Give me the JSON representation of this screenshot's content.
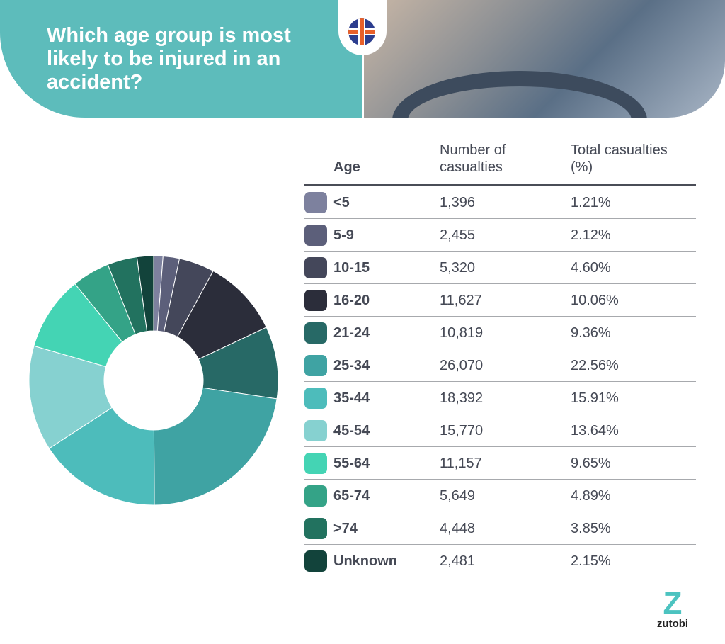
{
  "header": {
    "title": "Which age group is most likely to be injured in an accident?",
    "flag_icon": "uk-flag-icon"
  },
  "table": {
    "headers": [
      "Age",
      "Number of casualties",
      "Total casualties (%)"
    ]
  },
  "chart_data": {
    "type": "pie",
    "variant": "donut",
    "start": "top, clockwise",
    "categories": [
      "<5",
      "5-9",
      "10-15",
      "16-20",
      "21-24",
      "25-34",
      "35-44",
      "45-54",
      "55-64",
      "65-74",
      ">74",
      "Unknown"
    ],
    "values": [
      1396,
      2455,
      5320,
      11627,
      10819,
      26070,
      18392,
      15770,
      11157,
      5649,
      4448,
      2481
    ],
    "percent_labels": [
      "1.21%",
      "2.12%",
      "4.60%",
      "10.06%",
      "9.36%",
      "22.56%",
      "15.91%",
      "13.64%",
      "9.65%",
      "4.89%",
      "3.85%",
      "2.15%"
    ],
    "count_labels": [
      "1,396",
      "2,455",
      "5,320",
      "11,627",
      "10,819",
      "26,070",
      "18,392",
      "15,770",
      "11,157",
      "5,649",
      "4,448",
      "2,481"
    ],
    "colors": [
      "#7d819e",
      "#5c5f7a",
      "#44475a",
      "#2b2d3a",
      "#276966",
      "#3fa3a3",
      "#4dbcbb",
      "#86d1d0",
      "#44d4b4",
      "#34a387",
      "#22725f",
      "#12433b"
    ],
    "legend": "right (table)"
  },
  "brand": {
    "logo_mark": "Z",
    "name": "zutobi"
  }
}
